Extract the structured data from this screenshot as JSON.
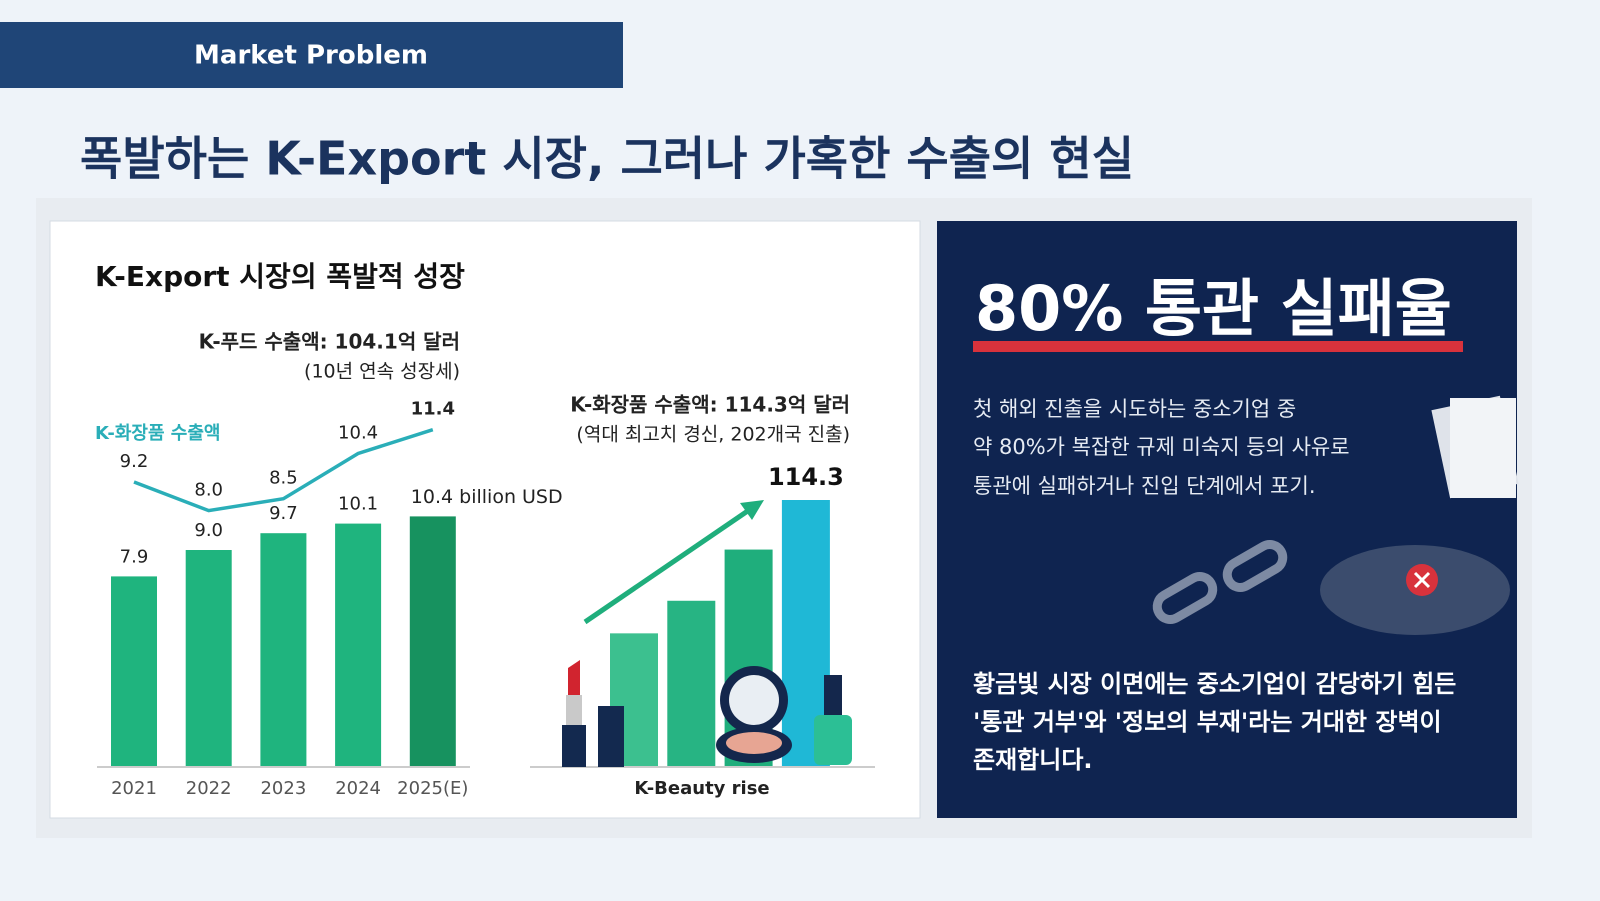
{
  "header": {
    "label": "Market Problem"
  },
  "title": "폭발하는 K-Export 시장, 그러나 가혹한 수출의 현실",
  "chart_data": [
    {
      "type": "bar",
      "title": "K-Export 시장의 폭발적 성장",
      "annotation": [
        "K-푸드 수출액: 104.1억 달러",
        "(10년 연속 성장세)"
      ],
      "categories": [
        "2021",
        "2022",
        "2023",
        "2024",
        "2025(E)"
      ],
      "series": [
        {
          "type": "bar",
          "color": "#1fb47e",
          "values": [
            7.9,
            9.0,
            9.7,
            10.1,
            10.4
          ],
          "value_labels": [
            "7.9",
            "9.0",
            "9.7",
            "10.1",
            "10.4 billion USD"
          ]
        },
        {
          "type": "line",
          "name": "K-화장품 수출액",
          "color": "#2aaeb8",
          "values": [
            9.2,
            8.0,
            8.5,
            10.4,
            11.4
          ],
          "value_labels": [
            "9.2",
            "8.0",
            "8.5",
            "10.4",
            "11.4"
          ]
        }
      ]
    },
    {
      "type": "bar",
      "annotation": [
        "K-화장품 수출액: 114.3억 달러",
        "(역대 최고치 경신, 202개국 진출)"
      ],
      "xlabel": "K-Beauty rise",
      "values": [
        57,
        71,
        93,
        114.3
      ],
      "colors": [
        "#3cc08f",
        "#27b483",
        "#1fae7c",
        "#1fb8d6"
      ]
    }
  ],
  "right_panel": {
    "heading": "80% 통관 실패율",
    "paragraph1": [
      "첫 해외 진출을 시도하는 중소기업 중",
      "약 80%가 복잡한 규제 미숙지 등의 사유로",
      "통관에 실패하거나 진입 단계에서 포기."
    ],
    "paragraph2": [
      "황금빛 시장 이면에는 중소기업이 감당하기 힘든",
      "'통관 거부'와 '정보의 부재'라는 거대한 장벽이",
      "존재합니다."
    ]
  }
}
